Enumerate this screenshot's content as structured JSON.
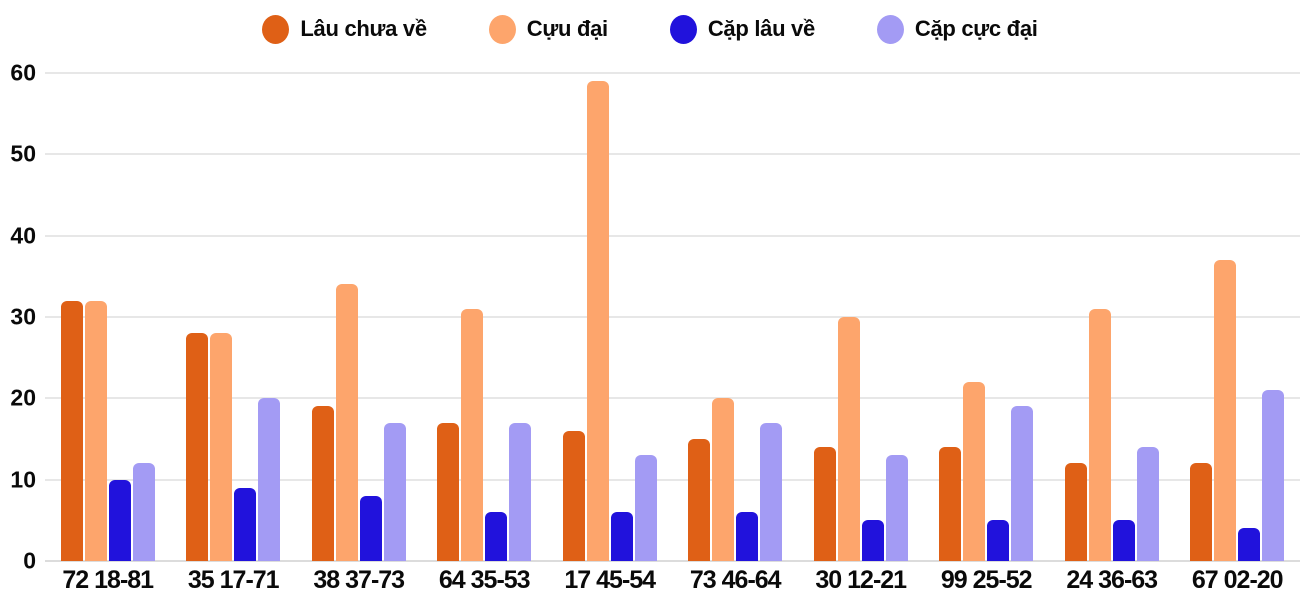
{
  "chart_data": {
    "type": "bar",
    "title": "",
    "xlabel": "",
    "ylabel": "",
    "ylim": [
      0,
      60
    ],
    "yticks": [
      0,
      10,
      20,
      30,
      40,
      50,
      60
    ],
    "grid": true,
    "legend_position": "top",
    "background_color": "#ffffff",
    "gridline_color": "#e7e7e7",
    "text_color": "#0a0a0a",
    "categories": [
      "72 18-81",
      "35 17-71",
      "38 37-73",
      "64 35-53",
      "17 45-54",
      "73 46-64",
      "30 12-21",
      "99 25-52",
      "24 36-63",
      "67 02-20"
    ],
    "series": [
      {
        "name": "Lâu chưa về",
        "color": "#df6016",
        "values": [
          32,
          28,
          19,
          17,
          16,
          15,
          14,
          14,
          12,
          12
        ]
      },
      {
        "name": "Cựu đại",
        "color": "#fda56c",
        "values": [
          32,
          28,
          34,
          31,
          59,
          20,
          30,
          22,
          31,
          37
        ]
      },
      {
        "name": "Cặp lâu về",
        "color": "#2112dc",
        "values": [
          10,
          9,
          8,
          6,
          6,
          6,
          5,
          5,
          5,
          4
        ]
      },
      {
        "name": "Cặp cực đại",
        "color": "#a39bf4",
        "values": [
          12,
          20,
          17,
          17,
          13,
          17,
          13,
          19,
          14,
          21
        ]
      }
    ]
  }
}
